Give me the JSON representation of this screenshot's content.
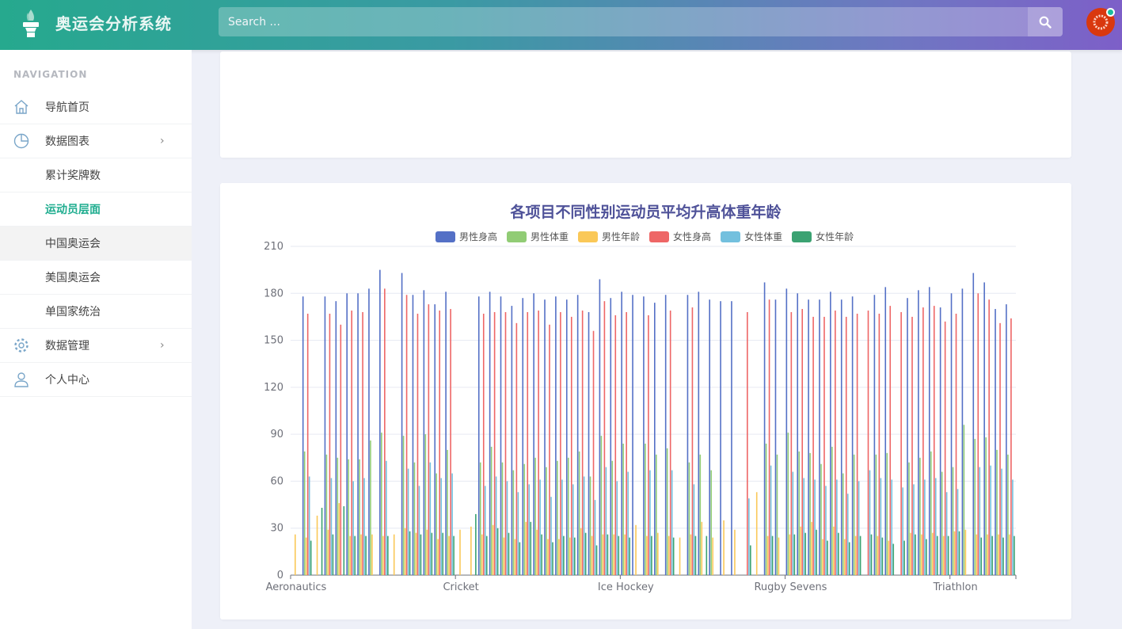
{
  "header": {
    "app_title": "奥运会分析系统",
    "search_placeholder": "Search ..."
  },
  "icons": {
    "logo": "torch-icon",
    "search": "search-icon",
    "avatar": "user-avatar"
  },
  "sidebar": {
    "heading": "NAVIGATION",
    "items": [
      {
        "label": "导航首页",
        "icon": "home-icon"
      },
      {
        "label": "数据图表",
        "icon": "pie-chart-icon",
        "chevron": true
      },
      {
        "label": "累计奖牌数"
      },
      {
        "label": "运动员层面",
        "active": true
      },
      {
        "label": "中国奥运会",
        "hover": true
      },
      {
        "label": "美国奥运会"
      },
      {
        "label": "单国家统治"
      },
      {
        "label": "数据管理",
        "icon": "gear-icon",
        "chevron": true
      },
      {
        "label": "个人中心",
        "icon": "user-icon"
      }
    ]
  },
  "colors": {
    "accent": "#1fad8f",
    "title": "#4f5299"
  },
  "chart_data": {
    "type": "bar",
    "title": "各项目不同性别运动员平均升高体重年龄",
    "legend_position": "top",
    "ylim": [
      0,
      210
    ],
    "yticks": [
      0,
      30,
      60,
      90,
      120,
      150,
      180,
      210
    ],
    "grid": true,
    "categories": [
      "Aeronautics",
      "",
      "",
      "",
      "",
      "",
      "",
      "",
      "",
      "",
      "",
      "",
      "",
      "",
      "",
      "Cricket",
      "",
      "",
      "",
      "",
      "",
      "",
      "",
      "",
      "",
      "",
      "",
      "",
      "",
      "",
      "Ice Hockey",
      "",
      "",
      "",
      "",
      "",
      "",
      "",
      "",
      "",
      "",
      "",
      "",
      "",
      "",
      "Rugby Sevens",
      "",
      "",
      "",
      "",
      "",
      "",
      "",
      "",
      "",
      "",
      "",
      "",
      "",
      "",
      "Triathlon",
      "",
      "",
      "",
      "",
      ""
    ],
    "series": [
      {
        "name": "男性身高",
        "color": "#5470c6",
        "values": [
          null,
          178,
          null,
          178,
          175,
          180,
          180,
          183,
          195,
          null,
          193,
          179,
          182,
          173,
          181,
          null,
          null,
          178,
          181,
          178,
          172,
          177,
          180,
          176,
          178,
          176,
          179,
          168,
          189,
          177,
          181,
          179,
          178,
          174,
          179,
          null,
          179,
          181,
          176,
          175,
          175,
          null,
          null,
          187,
          176,
          183,
          180,
          176,
          176,
          181,
          176,
          178,
          null,
          179,
          184,
          null,
          177,
          182,
          184,
          171,
          180,
          183,
          193,
          187,
          170,
          173
        ]
      },
      {
        "name": "男性体重",
        "color": "#91cc75",
        "values": [
          null,
          79,
          null,
          77,
          75,
          74,
          74,
          86,
          91,
          null,
          89,
          72,
          90,
          65,
          80,
          null,
          null,
          72,
          82,
          72,
          67,
          71,
          75,
          69,
          73,
          75,
          79,
          63,
          89,
          73,
          84,
          null,
          84,
          77,
          81,
          null,
          72,
          77,
          67,
          null,
          null,
          null,
          null,
          84,
          77,
          91,
          79,
          78,
          71,
          82,
          65,
          77,
          null,
          77,
          78,
          null,
          72,
          75,
          79,
          66,
          69,
          96,
          87,
          88,
          80,
          77
        ]
      },
      {
        "name": "男性年龄",
        "color": "#fac858",
        "values": [
          26,
          24,
          38,
          29,
          46,
          25,
          26,
          26,
          25,
          26,
          30,
          27,
          29,
          23,
          25,
          29,
          31,
          26,
          32,
          24,
          23,
          34,
          29,
          23,
          23,
          24,
          30,
          25,
          26,
          26,
          26,
          32,
          25,
          27,
          25,
          24,
          26,
          34,
          24,
          35,
          29,
          null,
          53,
          25,
          24,
          26,
          31,
          34,
          23,
          31,
          23,
          25,
          null,
          25,
          22,
          null,
          27,
          26,
          27,
          25,
          28,
          29,
          26,
          26,
          26,
          26
        ]
      },
      {
        "name": "女性身高",
        "color": "#ee6666",
        "values": [
          null,
          167,
          null,
          167,
          160,
          169,
          168,
          null,
          183,
          null,
          179,
          167,
          173,
          169,
          170,
          null,
          null,
          167,
          168,
          168,
          161,
          168,
          169,
          160,
          168,
          165,
          169,
          156,
          175,
          166,
          168,
          null,
          166,
          null,
          169,
          null,
          171,
          null,
          null,
          null,
          null,
          168,
          null,
          176,
          null,
          168,
          170,
          165,
          165,
          169,
          165,
          167,
          169,
          167,
          172,
          168,
          165,
          171,
          172,
          162,
          167,
          null,
          180,
          176,
          161,
          164
        ]
      },
      {
        "name": "女性体重",
        "color": "#73c0de",
        "values": [
          null,
          63,
          null,
          62,
          null,
          60,
          62,
          null,
          73,
          null,
          68,
          57,
          72,
          62,
          65,
          null,
          null,
          57,
          63,
          60,
          53,
          58,
          61,
          50,
          61,
          58,
          63,
          48,
          69,
          60,
          66,
          null,
          67,
          null,
          67,
          null,
          58,
          null,
          null,
          null,
          null,
          49,
          null,
          70,
          null,
          66,
          62,
          61,
          57,
          61,
          52,
          60,
          67,
          62,
          61,
          56,
          58,
          61,
          62,
          53,
          55,
          null,
          69,
          70,
          68,
          61
        ]
      },
      {
        "name": "女性年龄",
        "color": "#3ba272",
        "values": [
          null,
          22,
          43,
          26,
          44,
          25,
          25,
          null,
          25,
          null,
          28,
          26,
          27,
          27,
          25,
          null,
          39,
          25,
          30,
          27,
          21,
          34,
          26,
          21,
          25,
          24,
          27,
          19,
          26,
          25,
          24,
          null,
          25,
          null,
          24,
          null,
          25,
          25,
          null,
          null,
          null,
          19,
          null,
          25,
          null,
          26,
          27,
          29,
          22,
          27,
          21,
          25,
          26,
          24,
          20,
          22,
          26,
          23,
          25,
          25,
          28,
          null,
          24,
          25,
          24,
          25
        ]
      }
    ]
  }
}
